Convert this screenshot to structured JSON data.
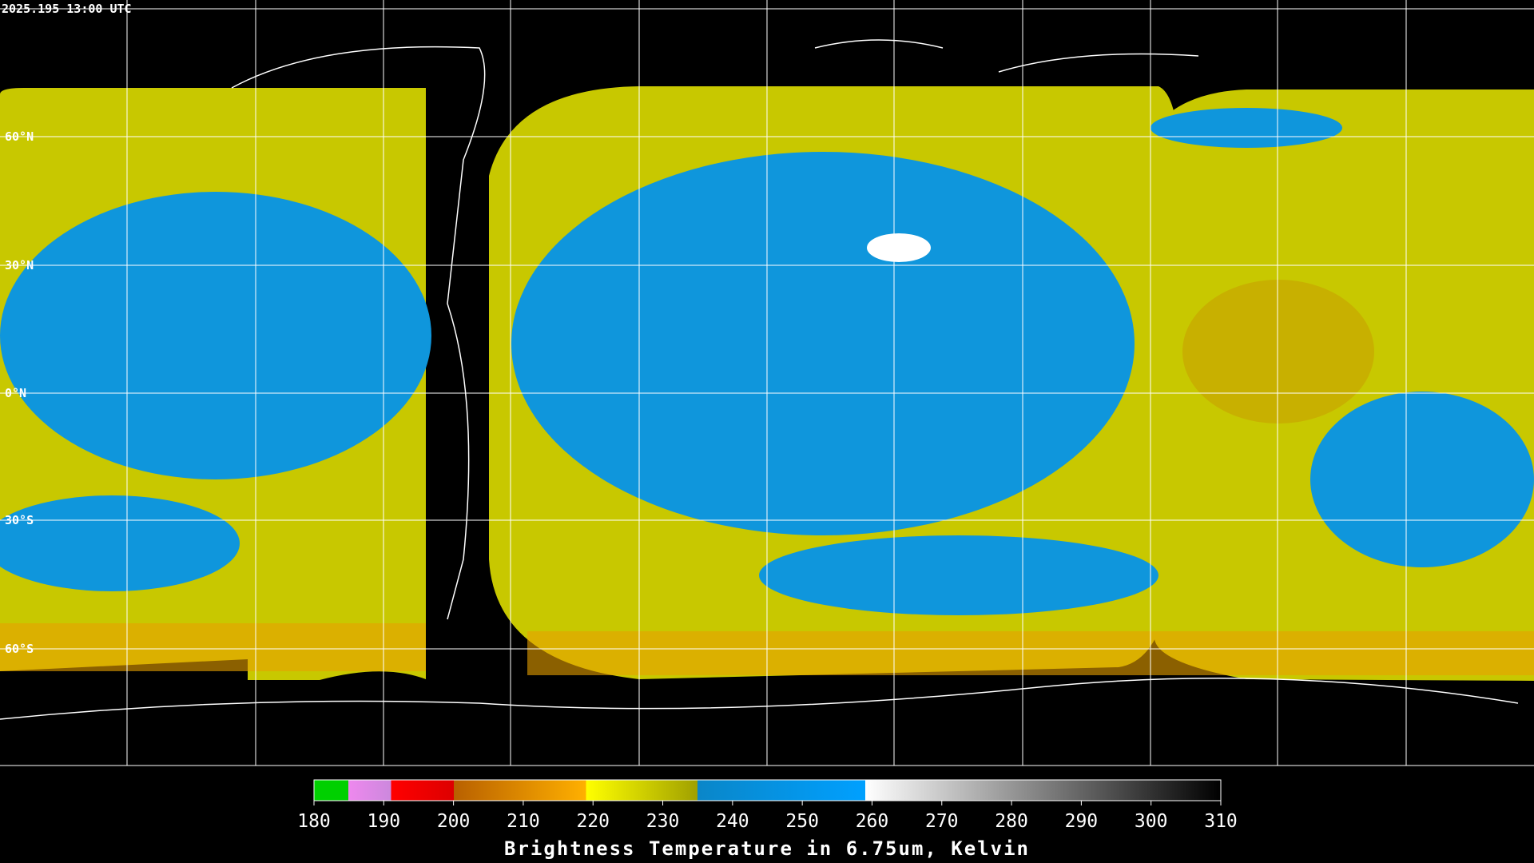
{
  "header": {
    "timestamp": "2025.195 13:00 UTC"
  },
  "map": {
    "lat_labels": [
      "60°N",
      "30°N",
      "0°N",
      "30°S",
      "60°S"
    ]
  },
  "colorbar": {
    "ticks": [
      180,
      190,
      200,
      210,
      220,
      230,
      240,
      250,
      260,
      270,
      280,
      290,
      300,
      310
    ],
    "title": "Brightness Temperature in 6.75um, Kelvin"
  }
}
